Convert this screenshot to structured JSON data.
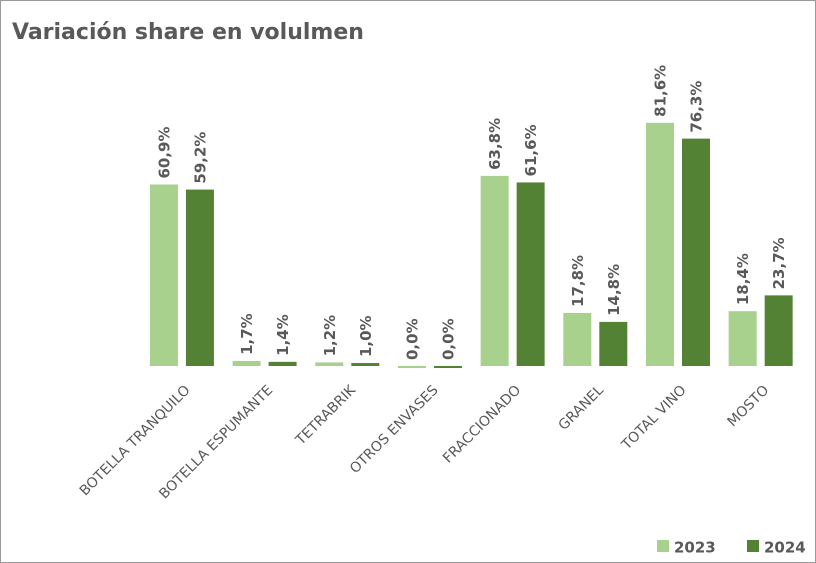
{
  "chart_data": {
    "type": "bar",
    "title": "Variación share en volulmen",
    "categories": [
      "BOTELLA TRANQUILO",
      "BOTELLA ESPUMANTE",
      "TETRABRIK",
      "OTROS ENVASES",
      "FRACCIONADO",
      "GRANEL",
      "TOTAL VINO",
      "MOSTO"
    ],
    "series": [
      {
        "name": "2023",
        "color": "#a9d18e",
        "values": [
          60.9,
          1.7,
          1.2,
          0.0,
          63.8,
          17.8,
          81.6,
          18.4
        ],
        "value_labels": [
          "60,9%",
          "1,7%",
          "1,2%",
          "0,0%",
          "63,8%",
          "17,8%",
          "81,6%",
          "18,4%"
        ]
      },
      {
        "name": "2024",
        "color": "#548235",
        "values": [
          59.2,
          1.4,
          1.0,
          0.0,
          61.6,
          14.8,
          76.3,
          23.7
        ],
        "value_labels": [
          "59,2%",
          "1,4%",
          "1,0%",
          "0,0%",
          "61,6%",
          "14,8%",
          "76,3%",
          "23,7%"
        ]
      }
    ],
    "ylim": [
      0,
      100
    ],
    "legend": "bottom-right"
  }
}
